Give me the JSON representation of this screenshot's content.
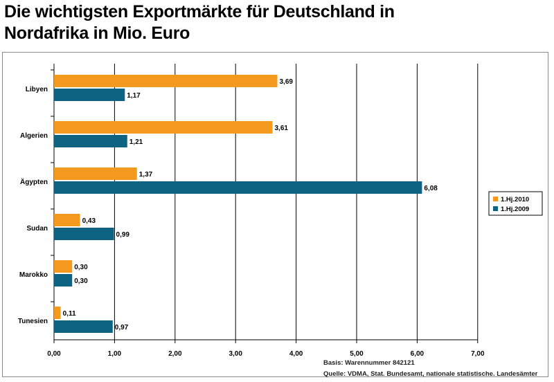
{
  "title_line1": "Die wichtigsten Exportmärkte für Deutschland in",
  "title_line2": "Nordafrika in Mio. Euro",
  "basis_note": "Basis: Warennummer 842121",
  "source_note": "Quelle: VDMA, Stat. Bundesamt, nationale statistische. Landesämter",
  "colors": {
    "series_2010": "#F39A1E",
    "series_2009": "#0E6382"
  },
  "chart_data": {
    "type": "bar",
    "orientation": "horizontal",
    "title": "Die wichtigsten Exportmärkte für Deutschland in Nordafrika in Mio. Euro",
    "categories": [
      "Libyen",
      "Algerien",
      "Ägypten",
      "Sudan",
      "Marokko",
      "Tunesien"
    ],
    "series": [
      {
        "name": "1.Hj.2010",
        "values": [
          3.69,
          3.61,
          1.37,
          0.43,
          0.3,
          0.11
        ],
        "labels": [
          "3,69",
          "3,61",
          "1,37",
          "0,43",
          "0,30",
          "0,11"
        ]
      },
      {
        "name": "1.Hj.2009",
        "values": [
          1.17,
          1.21,
          6.08,
          0.99,
          0.3,
          0.97
        ],
        "labels": [
          "1,17",
          "1,21",
          "6,08",
          "0,99",
          "0,30",
          "0,97"
        ]
      }
    ],
    "xlim": [
      0,
      7
    ],
    "xticks": [
      0,
      1,
      2,
      3,
      4,
      5,
      6,
      7
    ],
    "xtick_labels": [
      "0,00",
      "1,00",
      "2,00",
      "3,00",
      "4,00",
      "5,00",
      "6,00",
      "7,00"
    ],
    "grid": true,
    "legend_position": "right"
  }
}
